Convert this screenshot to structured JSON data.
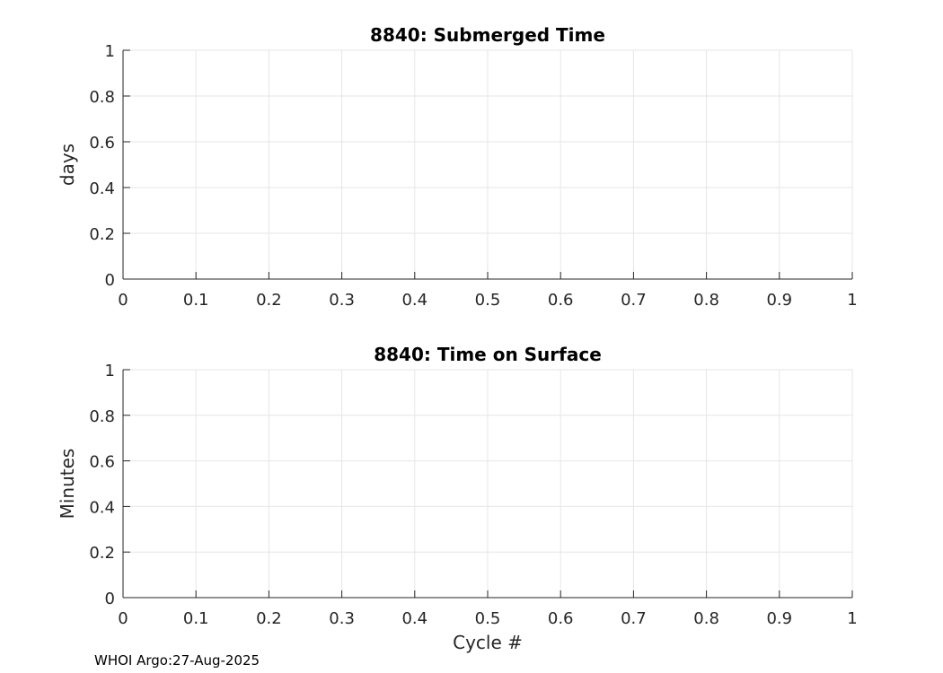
{
  "chart_data": [
    {
      "type": "line",
      "title": "8840: Submerged Time",
      "xlabel": "",
      "ylabel": "days",
      "xlim": [
        0,
        1
      ],
      "ylim": [
        0,
        1
      ],
      "xticks": [
        "0",
        "0.1",
        "0.2",
        "0.3",
        "0.4",
        "0.5",
        "0.6",
        "0.7",
        "0.8",
        "0.9",
        "1"
      ],
      "yticks": [
        "0",
        "0.2",
        "0.4",
        "0.6",
        "0.8",
        "1"
      ],
      "grid": true,
      "series": []
    },
    {
      "type": "line",
      "title": "8840: Time on Surface",
      "xlabel": "Cycle #",
      "ylabel": "Minutes",
      "xlim": [
        0,
        1
      ],
      "ylim": [
        0,
        1
      ],
      "xticks": [
        "0",
        "0.1",
        "0.2",
        "0.3",
        "0.4",
        "0.5",
        "0.6",
        "0.7",
        "0.8",
        "0.9",
        "1"
      ],
      "yticks": [
        "0",
        "0.2",
        "0.4",
        "0.6",
        "0.8",
        "1"
      ],
      "grid": true,
      "series": []
    }
  ],
  "footer": "WHOI Argo:27-Aug-2025",
  "colors": {
    "grid": "#e6e6e6",
    "axis": "#262626"
  }
}
